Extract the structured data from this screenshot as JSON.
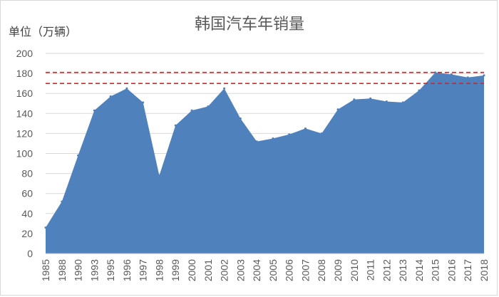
{
  "chart_data": {
    "type": "area",
    "title": "韩国汽车年销量",
    "unit_label": "单位（万辆）",
    "xlabel": "",
    "ylabel": "",
    "ylim": [
      0,
      200
    ],
    "y_ticks": [
      0,
      20,
      40,
      60,
      80,
      100,
      120,
      140,
      160,
      180,
      200
    ],
    "grid": true,
    "legend": "none",
    "fill_color": "#4f81bd",
    "reference_line_color": "#e02020",
    "x": [
      "1985",
      "1988",
      "1990",
      "1993",
      "1995",
      "1996",
      "1997",
      "1998",
      "1999",
      "2000",
      "2001",
      "2002",
      "2003",
      "2004",
      "2005",
      "2006",
      "2007",
      "2008",
      "2009",
      "2010",
      "2011",
      "2012",
      "2013",
      "2014",
      "2015",
      "2016",
      "2017",
      "2018"
    ],
    "values": [
      26,
      52,
      98,
      143,
      157,
      165,
      151,
      78,
      128,
      143,
      147,
      165,
      135,
      112,
      115,
      119,
      125,
      120,
      144,
      154,
      155,
      152,
      151,
      163,
      181,
      179,
      176,
      178
    ],
    "reference_lines": [
      {
        "style": "dashed",
        "value": 181
      },
      {
        "style": "dashed",
        "value": 170
      }
    ]
  }
}
